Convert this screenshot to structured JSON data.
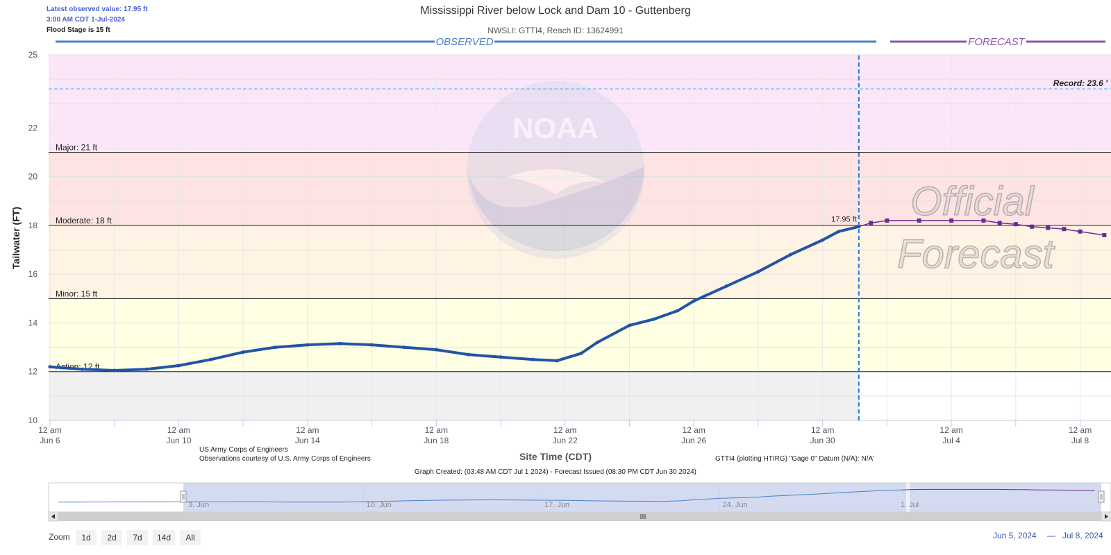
{
  "info": {
    "latest_value": "Latest observed value: 17.95 ft",
    "latest_time": "3:00 AM CDT 1-Jul-2024",
    "flood_stage": "Flood Stage is 15 ft"
  },
  "header": {
    "title": "Mississippi River below Lock and Dam 10 - Guttenberg",
    "subtitle": "NWSLI: GTTI4, Reach ID: 13624991"
  },
  "banners": {
    "observed": "OBSERVED",
    "forecast": "FORECAST"
  },
  "watermark": {
    "noaa": "NOAA",
    "official1": "Official",
    "official2": "Forecast"
  },
  "footer": {
    "site_time_label": "Site Time (CDT)",
    "usace1": "US Army Corps of Engineers",
    "usace2": "Observations courtesy of U.S. Army Corps of Engineers",
    "datum": "GTTI4 (plotting HTIRG) \"Gage 0\" Datum (N/A): N/A'",
    "graph_created": "Graph Created: (03:48 AM CDT Jul 1 2024) - Forecast Issued (08:30 PM CDT Jun 30 2024)"
  },
  "navigator": {
    "labels": [
      "3. Jun",
      "10. Jun",
      "17. Jun",
      "24. Jun",
      "1. Jul"
    ],
    "range_start": "Jun 5, 2024",
    "range_sep": "—",
    "range_end": "Jul 8, 2024"
  },
  "zoom": {
    "label": "Zoom",
    "buttons": [
      "1d",
      "2d",
      "7d",
      "14d",
      "All"
    ]
  },
  "colors": {
    "observed": "#2154a8",
    "forecast": "#6a2c91",
    "major": "#fbe6f9",
    "moderate": "#fee3e3",
    "minor": "#fff3e3",
    "action": "#ffffe3",
    "below": "#f0f0f0",
    "record": "#70c8e8"
  },
  "chart_data": {
    "type": "line",
    "title": "Mississippi River below Lock and Dam 10 - Guttenberg",
    "subtitle": "NWSLI: GTTI4, Reach ID: 13624991",
    "ylabel": "Tailwater (FT)",
    "xlabel": "Site Time (CDT)",
    "ylim": [
      10,
      25
    ],
    "xlim": [
      "2024-06-05T23:00",
      "2024-07-08T23:00"
    ],
    "yticks": [
      10,
      12,
      14,
      16,
      18,
      20,
      22,
      25
    ],
    "xticks": [
      {
        "date": "2024-06-06T00:00",
        "l1": "12 am",
        "l2": "Jun 6"
      },
      {
        "date": "2024-06-10T00:00",
        "l1": "12 am",
        "l2": "Jun 10"
      },
      {
        "date": "2024-06-14T00:00",
        "l1": "12 am",
        "l2": "Jun 14"
      },
      {
        "date": "2024-06-18T00:00",
        "l1": "12 am",
        "l2": "Jun 18"
      },
      {
        "date": "2024-06-22T00:00",
        "l1": "12 am",
        "l2": "Jun 22"
      },
      {
        "date": "2024-06-26T00:00",
        "l1": "12 am",
        "l2": "Jun 26"
      },
      {
        "date": "2024-06-30T00:00",
        "l1": "12 am",
        "l2": "Jun 30"
      },
      {
        "date": "2024-07-04T00:00",
        "l1": "12 am",
        "l2": "Jul 4"
      },
      {
        "date": "2024-07-08T00:00",
        "l1": "12 am",
        "l2": "Jul 8"
      }
    ],
    "thresholds": [
      {
        "name": "Action",
        "value": 12,
        "label": "Action: 12 ft"
      },
      {
        "name": "Minor",
        "value": 15,
        "label": "Minor: 15 ft"
      },
      {
        "name": "Moderate",
        "value": 18,
        "label": "Moderate: 18 ft"
      },
      {
        "name": "Major",
        "value": 21,
        "label": "Major: 21 ft"
      }
    ],
    "record": {
      "value": 23.6,
      "label": "Record: 23.6 '"
    },
    "now": "2024-07-01T03:00",
    "latest_label": "17.95 ft",
    "observed": [
      [
        "2024-06-06T00:00",
        12.2
      ],
      [
        "2024-06-07T00:00",
        12.1
      ],
      [
        "2024-06-08T00:00",
        12.05
      ],
      [
        "2024-06-09T00:00",
        12.1
      ],
      [
        "2024-06-10T00:00",
        12.25
      ],
      [
        "2024-06-11T00:00",
        12.5
      ],
      [
        "2024-06-12T00:00",
        12.8
      ],
      [
        "2024-06-13T00:00",
        13.0
      ],
      [
        "2024-06-14T00:00",
        13.1
      ],
      [
        "2024-06-15T00:00",
        13.15
      ],
      [
        "2024-06-16T00:00",
        13.1
      ],
      [
        "2024-06-17T00:00",
        13.0
      ],
      [
        "2024-06-18T00:00",
        12.9
      ],
      [
        "2024-06-19T00:00",
        12.7
      ],
      [
        "2024-06-20T00:00",
        12.6
      ],
      [
        "2024-06-21T00:00",
        12.5
      ],
      [
        "2024-06-21T18:00",
        12.45
      ],
      [
        "2024-06-22T12:00",
        12.75
      ],
      [
        "2024-06-23T00:00",
        13.2
      ],
      [
        "2024-06-24T00:00",
        13.9
      ],
      [
        "2024-06-24T18:00",
        14.15
      ],
      [
        "2024-06-25T12:00",
        14.5
      ],
      [
        "2024-06-26T00:00",
        14.9
      ],
      [
        "2024-06-27T00:00",
        15.5
      ],
      [
        "2024-06-28T00:00",
        16.1
      ],
      [
        "2024-06-29T00:00",
        16.8
      ],
      [
        "2024-06-30T00:00",
        17.4
      ],
      [
        "2024-06-30T12:00",
        17.75
      ],
      [
        "2024-07-01T03:00",
        17.95
      ]
    ],
    "forecast": [
      [
        "2024-07-01T03:00",
        17.95
      ],
      [
        "2024-07-01T12:00",
        18.1
      ],
      [
        "2024-07-02T00:00",
        18.2
      ],
      [
        "2024-07-03T00:00",
        18.2
      ],
      [
        "2024-07-04T00:00",
        18.2
      ],
      [
        "2024-07-05T00:00",
        18.2
      ],
      [
        "2024-07-05T12:00",
        18.1
      ],
      [
        "2024-07-06T00:00",
        18.05
      ],
      [
        "2024-07-06T12:00",
        17.95
      ],
      [
        "2024-07-07T00:00",
        17.9
      ],
      [
        "2024-07-07T12:00",
        17.85
      ],
      [
        "2024-07-08T00:00",
        17.75
      ],
      [
        "2024-07-08T18:00",
        17.6
      ]
    ]
  }
}
